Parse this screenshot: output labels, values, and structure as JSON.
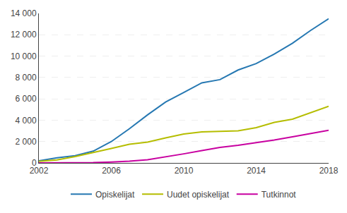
{
  "chart_data": {
    "type": "line",
    "x": [
      2002,
      2003,
      2004,
      2005,
      2006,
      2007,
      2008,
      2009,
      2010,
      2011,
      2012,
      2013,
      2014,
      2015,
      2016,
      2017,
      2018
    ],
    "series": [
      {
        "name": "Opiskelijat",
        "color": "#2678b2",
        "values": [
          200,
          480,
          680,
          1100,
          2000,
          3200,
          4500,
          5700,
          6600,
          7500,
          7800,
          8700,
          9300,
          10200,
          11200,
          12400,
          13500
        ]
      },
      {
        "name": "Uudet opiskelijat",
        "color": "#b5bd00",
        "values": [
          150,
          280,
          600,
          950,
          1350,
          1750,
          1950,
          2350,
          2700,
          2900,
          2950,
          3000,
          3300,
          3800,
          4100,
          4700,
          5300
        ]
      },
      {
        "name": "Tutkinnot",
        "color": "#c800a0",
        "values": [
          0,
          0,
          10,
          30,
          80,
          160,
          300,
          550,
          850,
          1150,
          1450,
          1650,
          1900,
          2150,
          2450,
          2750,
          3050
        ]
      }
    ],
    "xlim": [
      2002,
      2018
    ],
    "xticks": [
      2002,
      2006,
      2010,
      2014,
      2018
    ],
    "ylim": [
      0,
      14000
    ],
    "yticks": [
      0,
      {
        "value": 2000,
        "label": "2 000"
      },
      {
        "value": 4000,
        "label": "4 000"
      },
      {
        "value": 6000,
        "label": "6 000"
      },
      {
        "value": 8000,
        "label": "8 000"
      },
      {
        "value": 10000,
        "label": "10 000"
      },
      {
        "value": 12000,
        "label": "12 000"
      },
      {
        "value": 14000,
        "label": "14 000"
      }
    ],
    "grid": true,
    "legend": "bottom"
  }
}
